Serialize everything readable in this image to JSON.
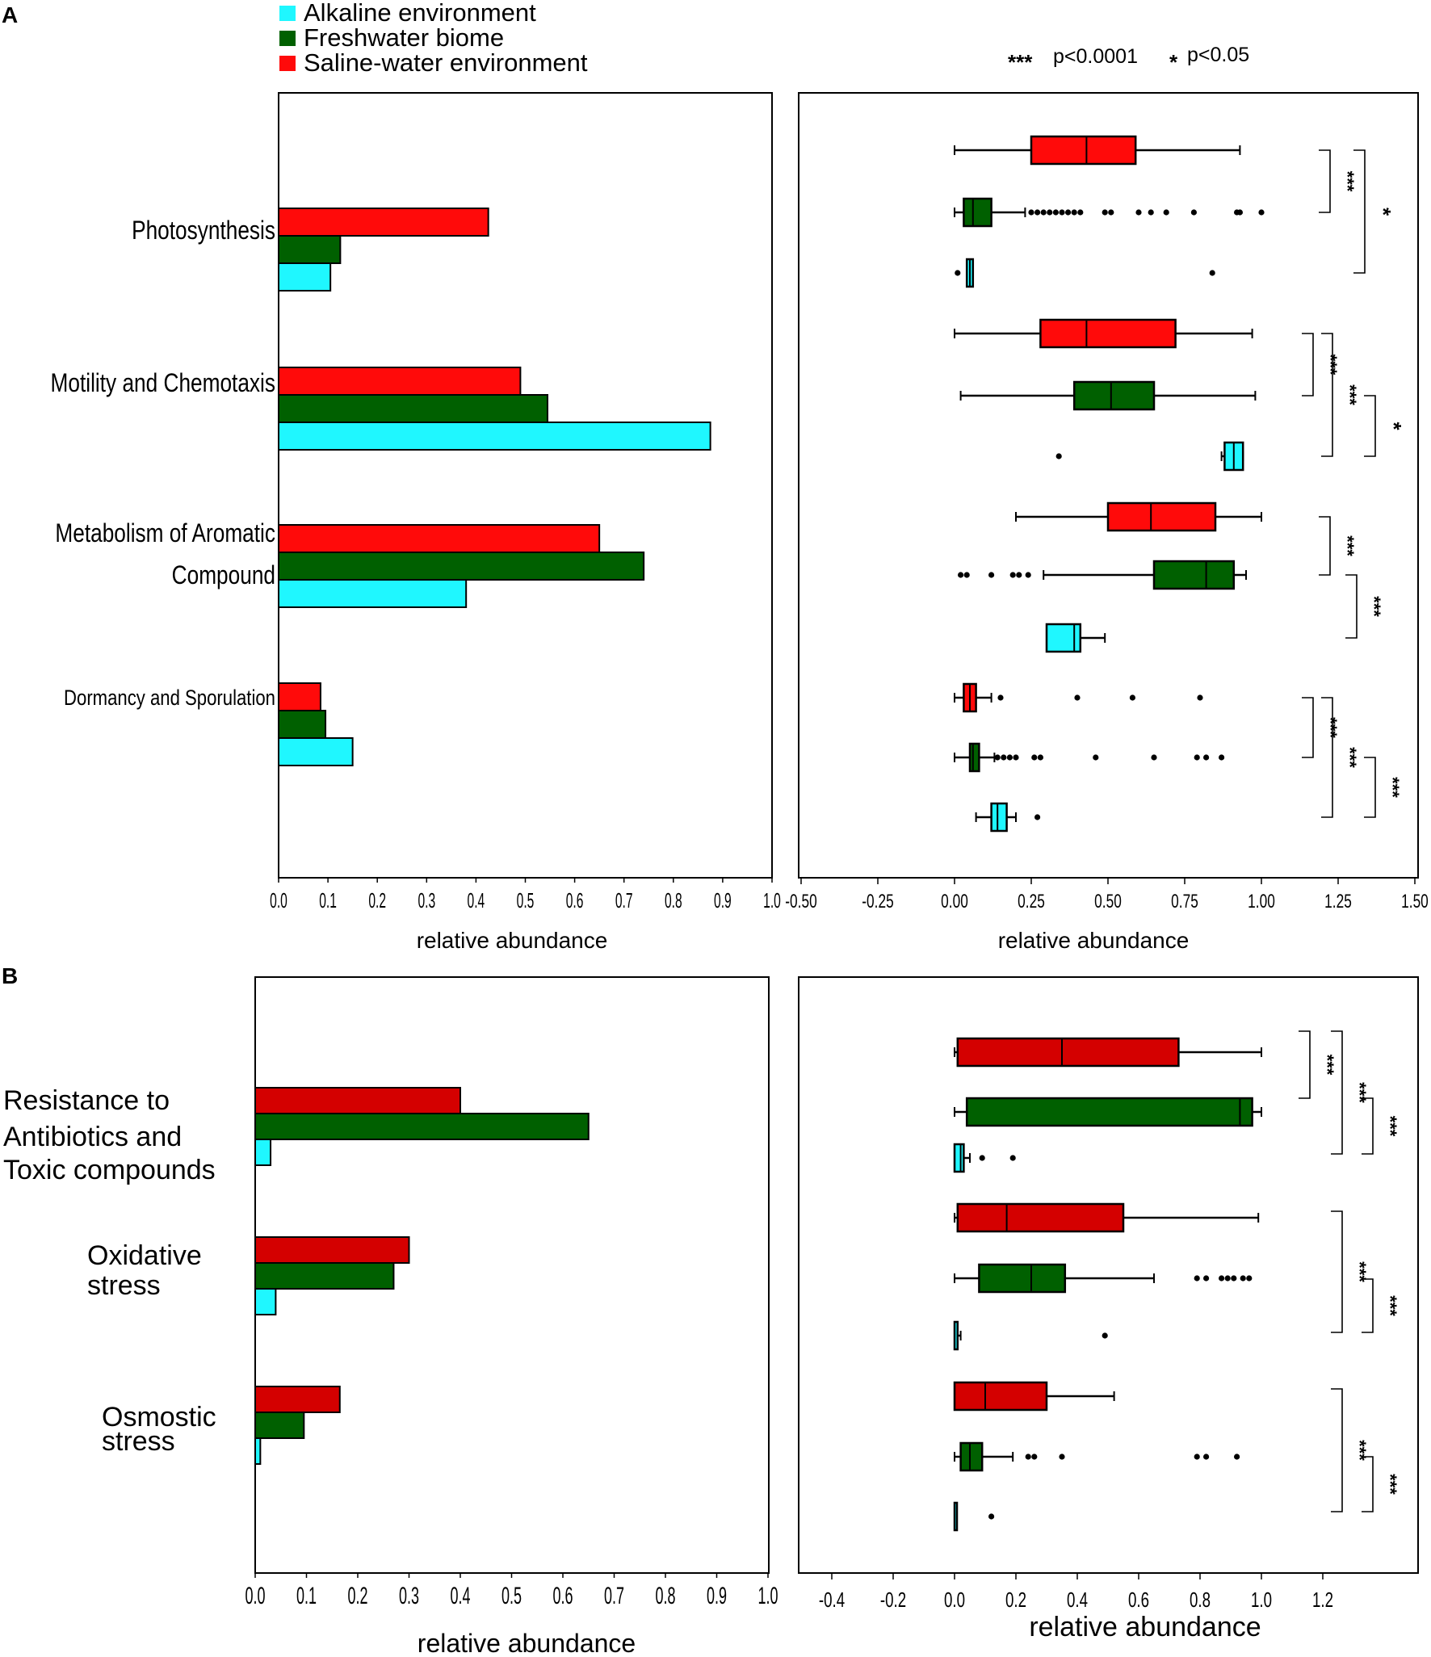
{
  "colors": {
    "alkaline": "#1ff7ff",
    "freshwater": "#006000",
    "saline_a": "#ff0a0a",
    "saline_b": "#d40000"
  },
  "legend": {
    "items": [
      {
        "label": "Alkaline environment",
        "color_key": "alkaline"
      },
      {
        "label": "Freshwater biome",
        "color_key": "freshwater"
      },
      {
        "label": "Saline-water environment",
        "color_key": "saline_a"
      }
    ],
    "significance": {
      "high": "p<0.0001",
      "high_mark": "***",
      "low": "p<0.05",
      "low_mark": "*"
    }
  },
  "chart_data": [
    {
      "panel": "A",
      "part": "left",
      "type": "bar",
      "orientation": "horizontal",
      "xlabel": "relative abundance",
      "xlim": [
        0,
        1.0
      ],
      "ticks": [
        "0.0",
        "0.1",
        "0.2",
        "0.3",
        "0.4",
        "0.5",
        "0.6",
        "0.7",
        "0.8",
        "0.9",
        "1.0"
      ],
      "categories": [
        {
          "label_lines": [
            "Photosynthesis"
          ],
          "values": {
            "saline": 0.425,
            "freshwater": 0.125,
            "alkaline": 0.105
          }
        },
        {
          "label_lines": [
            "Motility and Chemotaxis"
          ],
          "values": {
            "saline": 0.49,
            "freshwater": 0.545,
            "alkaline": 0.875
          }
        },
        {
          "label_lines": [
            "Metabolism of Aromatic",
            "Compound"
          ],
          "values": {
            "saline": 0.65,
            "freshwater": 0.74,
            "alkaline": 0.38
          }
        },
        {
          "label_lines": [
            "Dormancy and Sporulation"
          ],
          "values": {
            "saline": 0.085,
            "freshwater": 0.095,
            "alkaline": 0.15
          }
        }
      ]
    },
    {
      "panel": "A",
      "part": "right",
      "type": "boxplot",
      "orientation": "horizontal",
      "xlabel": "relative abundance",
      "xlim": [
        -0.5,
        1.5
      ],
      "ticks": [
        "-0.50",
        "-0.25",
        "0.00",
        "0.25",
        "0.50",
        "0.75",
        "1.00",
        "1.25",
        "1.50"
      ],
      "boxes": [
        {
          "group": "saline",
          "category": "Photosynthesis",
          "min": 0.0,
          "q1": 0.25,
          "median": 0.43,
          "q3": 0.59,
          "max": 0.93,
          "outliers": []
        },
        {
          "group": "freshwater",
          "category": "Photosynthesis",
          "min": 0.0,
          "q1": 0.03,
          "median": 0.06,
          "q3": 0.12,
          "max": 0.23,
          "outliers": [
            0.25,
            0.27,
            0.29,
            0.31,
            0.33,
            0.35,
            0.37,
            0.39,
            0.41,
            0.49,
            0.51,
            0.6,
            0.64,
            0.69,
            0.78,
            0.92,
            0.93,
            1.0
          ]
        },
        {
          "group": "alkaline",
          "category": "Photosynthesis",
          "min": 0.04,
          "q1": 0.04,
          "median": 0.05,
          "q3": 0.06,
          "max": 0.06,
          "outliers": [
            0.01,
            0.84
          ]
        },
        {
          "group": "saline",
          "category": "Motility and Chemotaxis",
          "min": 0.0,
          "q1": 0.28,
          "median": 0.43,
          "q3": 0.72,
          "max": 0.97,
          "outliers": []
        },
        {
          "group": "freshwater",
          "category": "Motility and Chemotaxis",
          "min": 0.02,
          "q1": 0.39,
          "median": 0.51,
          "q3": 0.65,
          "max": 0.98,
          "outliers": []
        },
        {
          "group": "alkaline",
          "category": "Motility and Chemotaxis",
          "min": 0.87,
          "q1": 0.88,
          "median": 0.91,
          "q3": 0.94,
          "max": 0.94,
          "outliers": [
            0.34
          ]
        },
        {
          "group": "saline",
          "category": "Metabolism of Aromatic Compound",
          "min": 0.2,
          "q1": 0.5,
          "median": 0.64,
          "q3": 0.85,
          "max": 1.0,
          "outliers": []
        },
        {
          "group": "freshwater",
          "category": "Metabolism of Aromatic Compound",
          "min": 0.29,
          "q1": 0.65,
          "median": 0.82,
          "q3": 0.91,
          "max": 0.95,
          "outliers": [
            0.02,
            0.04,
            0.12,
            0.19,
            0.21,
            0.24
          ]
        },
        {
          "group": "alkaline",
          "category": "Metabolism of Aromatic Compound",
          "min": 0.3,
          "q1": 0.3,
          "median": 0.39,
          "q3": 0.41,
          "max": 0.49,
          "outliers": []
        },
        {
          "group": "saline",
          "category": "Dormancy and Sporulation",
          "min": 0.0,
          "q1": 0.03,
          "median": 0.05,
          "q3": 0.07,
          "max": 0.12,
          "outliers": [
            0.15,
            0.4,
            0.58,
            0.8
          ]
        },
        {
          "group": "freshwater",
          "category": "Dormancy and Sporulation",
          "min": 0.0,
          "q1": 0.05,
          "median": 0.06,
          "q3": 0.08,
          "max": 0.13,
          "outliers": [
            0.14,
            0.16,
            0.18,
            0.2,
            0.26,
            0.28,
            0.46,
            0.65,
            0.79,
            0.82,
            0.87
          ]
        },
        {
          "group": "alkaline",
          "category": "Dormancy and Sporulation",
          "min": 0.07,
          "q1": 0.12,
          "median": 0.14,
          "q3": 0.17,
          "max": 0.2,
          "outliers": [
            0.27
          ]
        }
      ],
      "significance": [
        {
          "between": [
            "saline Photosynthesis",
            "freshwater Photosynthesis"
          ],
          "mark": "***"
        },
        {
          "between": [
            "saline Photosynthesis",
            "alkaline Photosynthesis"
          ],
          "mark": "*"
        },
        {
          "between": [
            "saline Motility",
            "freshwater Motility"
          ],
          "mark": "***"
        },
        {
          "between": [
            "saline Motility",
            "alkaline Motility"
          ],
          "mark": "***"
        },
        {
          "between": [
            "freshwater Motility",
            "alkaline Motility"
          ],
          "mark": "*"
        },
        {
          "between": [
            "saline Aromatic",
            "freshwater Aromatic"
          ],
          "mark": "***"
        },
        {
          "between": [
            "freshwater Aromatic",
            "alkaline Aromatic"
          ],
          "mark": "***"
        },
        {
          "between": [
            "saline Dormancy",
            "freshwater Dormancy"
          ],
          "mark": "***"
        },
        {
          "between": [
            "saline Dormancy",
            "alkaline Dormancy"
          ],
          "mark": "***"
        },
        {
          "between": [
            "freshwater Dormancy",
            "alkaline Dormancy"
          ],
          "mark": "***"
        }
      ]
    },
    {
      "panel": "B",
      "part": "left",
      "type": "bar",
      "orientation": "horizontal",
      "xlabel": "relative abundance",
      "xlim": [
        0,
        1.0
      ],
      "ticks": [
        "0.0",
        "0.1",
        "0.2",
        "0.3",
        "0.4",
        "0.5",
        "0.6",
        "0.7",
        "0.8",
        "0.9",
        "1.0"
      ],
      "categories": [
        {
          "label_lines": [
            "Resistance to",
            "Antibiotics and",
            "Toxic compounds"
          ],
          "values": {
            "saline": 0.4,
            "freshwater": 0.65,
            "alkaline": 0.03
          }
        },
        {
          "label_lines": [
            "Oxidative",
            "stress"
          ],
          "values": {
            "saline": 0.3,
            "freshwater": 0.27,
            "alkaline": 0.04
          }
        },
        {
          "label_lines": [
            "Osmostic",
            "stress"
          ],
          "values": {
            "saline": 0.165,
            "freshwater": 0.095,
            "alkaline": 0.01
          }
        }
      ]
    },
    {
      "panel": "B",
      "part": "right",
      "type": "boxplot",
      "orientation": "horizontal",
      "xlabel": "relative abundance",
      "xlim": [
        -0.5,
        1.5
      ],
      "ticks": [
        "-0.4",
        "-0.2",
        "0.0",
        "0.2",
        "0.4",
        "0.6",
        "0.8",
        "1.0",
        "1.2"
      ],
      "boxes": [
        {
          "group": "saline",
          "category": "Resistance to Antibiotics and Toxic compounds",
          "min": 0.0,
          "q1": 0.01,
          "median": 0.35,
          "q3": 0.73,
          "max": 1.0,
          "outliers": []
        },
        {
          "group": "freshwater",
          "category": "Resistance to Antibiotics and Toxic compounds",
          "min": 0.0,
          "q1": 0.04,
          "median": 0.93,
          "q3": 0.97,
          "max": 1.0,
          "outliers": []
        },
        {
          "group": "alkaline",
          "category": "Resistance to Antibiotics and Toxic compounds",
          "min": 0.0,
          "q1": 0.0,
          "median": 0.02,
          "q3": 0.03,
          "max": 0.05,
          "outliers": [
            0.09,
            0.19
          ]
        },
        {
          "group": "saline",
          "category": "Oxidative stress",
          "min": 0.0,
          "q1": 0.01,
          "median": 0.17,
          "q3": 0.55,
          "max": 0.99,
          "outliers": []
        },
        {
          "group": "freshwater",
          "category": "Oxidative stress",
          "min": 0.0,
          "q1": 0.08,
          "median": 0.25,
          "q3": 0.36,
          "max": 0.65,
          "outliers": [
            0.79,
            0.82,
            0.87,
            0.89,
            0.91,
            0.94,
            0.96
          ]
        },
        {
          "group": "alkaline",
          "category": "Oxidative stress",
          "min": 0.0,
          "q1": 0.0,
          "median": 0.0,
          "q3": 0.01,
          "max": 0.02,
          "outliers": [
            0.49
          ]
        },
        {
          "group": "saline",
          "category": "Osmostic stress",
          "min": 0.0,
          "q1": 0.0,
          "median": 0.1,
          "q3": 0.3,
          "max": 0.52,
          "outliers": []
        },
        {
          "group": "freshwater",
          "category": "Osmostic stress",
          "min": 0.0,
          "q1": 0.02,
          "median": 0.05,
          "q3": 0.09,
          "max": 0.19,
          "outliers": [
            0.24,
            0.26,
            0.35,
            0.79,
            0.82,
            0.92
          ]
        },
        {
          "group": "alkaline",
          "category": "Osmostic stress",
          "min": 0.0,
          "q1": 0.0,
          "median": 0.0,
          "q3": 0.0,
          "max": 0.0,
          "outliers": [
            0.12
          ]
        }
      ],
      "significance": [
        {
          "between": [
            "saline Resistance",
            "freshwater Resistance"
          ],
          "mark": "***"
        },
        {
          "between": [
            "saline Resistance",
            "alkaline Resistance"
          ],
          "mark": "***"
        },
        {
          "between": [
            "freshwater Resistance",
            "alkaline Resistance"
          ],
          "mark": "***"
        },
        {
          "between": [
            "saline Oxidative",
            "alkaline Oxidative"
          ],
          "mark": "***"
        },
        {
          "between": [
            "freshwater Oxidative",
            "alkaline Oxidative"
          ],
          "mark": "***"
        },
        {
          "between": [
            "saline Osmostic",
            "alkaline Osmostic"
          ],
          "mark": "***"
        },
        {
          "between": [
            "freshwater Osmostic",
            "alkaline Osmostic"
          ],
          "mark": "***"
        }
      ]
    }
  ],
  "panels": {
    "a_label": "A",
    "b_label": "B"
  }
}
